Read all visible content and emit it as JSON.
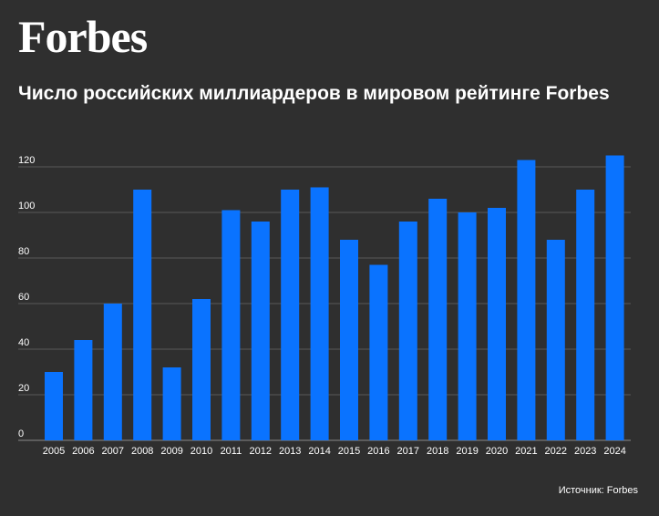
{
  "brand": {
    "logo_text": "Forbes"
  },
  "source": "Источник: Forbes",
  "colors": {
    "background": "#2f2f2f",
    "bar": "#0a73ff",
    "grid": "#5a5a5a",
    "text": "#ffffff"
  },
  "chart_data": {
    "type": "bar",
    "title": "Число российских миллиардеров в мировом рейтинге Forbes",
    "xlabel": "",
    "ylabel": "",
    "categories": [
      "2005",
      "2006",
      "2007",
      "2008",
      "2009",
      "2010",
      "2011",
      "2012",
      "2013",
      "2014",
      "2015",
      "2016",
      "2017",
      "2018",
      "2019",
      "2020",
      "2021",
      "2022",
      "2023",
      "2024"
    ],
    "values": [
      30,
      44,
      60,
      110,
      32,
      62,
      101,
      96,
      110,
      111,
      88,
      77,
      96,
      106,
      100,
      102,
      123,
      88,
      110,
      125
    ],
    "yticks": [
      0,
      20,
      40,
      60,
      80,
      100,
      120
    ],
    "ylim": [
      0,
      128
    ],
    "grid": true,
    "legend": "none"
  }
}
